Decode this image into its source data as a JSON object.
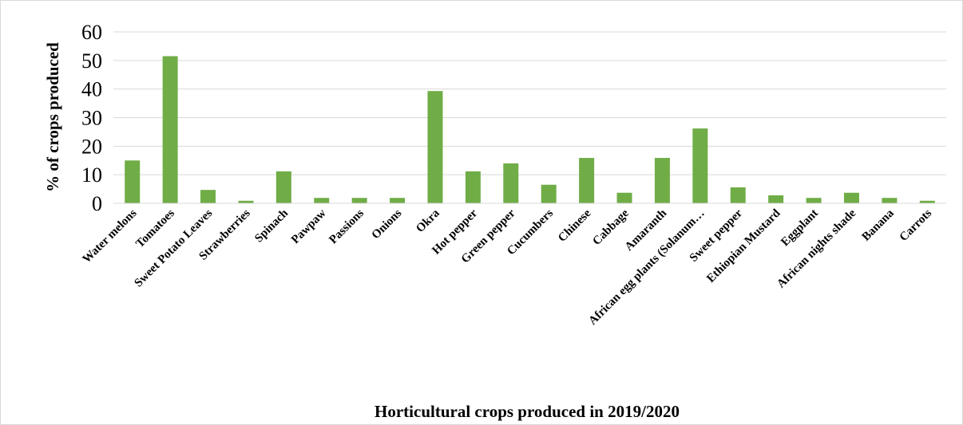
{
  "chart_data": {
    "type": "bar",
    "title": "",
    "xlabel": "Horticultural crops produced in 2019/2020",
    "ylabel": "% of crops produced",
    "ylim": [
      0,
      60
    ],
    "yticks": [
      0,
      10,
      20,
      30,
      40,
      50,
      60
    ],
    "grid": true,
    "legend": "none",
    "bar_color": "#70ad47",
    "categories": [
      "Water melons",
      "Tomatoes",
      "Sweet Potato Leaves",
      "Strawberries",
      "Spinach",
      "Pawpaw",
      "Passions",
      "Onions",
      "Okra",
      "Hot pepper",
      "Green pepper",
      "Cucumbers",
      "Chinese",
      "Cabbage",
      "Amaranth",
      "African egg plants (Solanum…",
      "Sweet pepper",
      "Ethiopian Mustard",
      "Eggplant",
      "African nights shade",
      "Banana",
      "Carrots"
    ],
    "series": [
      {
        "values": [
          15,
          51.5,
          4.7,
          0.9,
          11.2,
          1.9,
          1.9,
          1.9,
          39.3,
          11.2,
          14,
          6.5,
          15.9,
          3.7,
          15.9,
          26.2,
          5.6,
          2.8,
          1.9,
          3.7,
          1.9,
          0.9
        ]
      }
    ]
  }
}
